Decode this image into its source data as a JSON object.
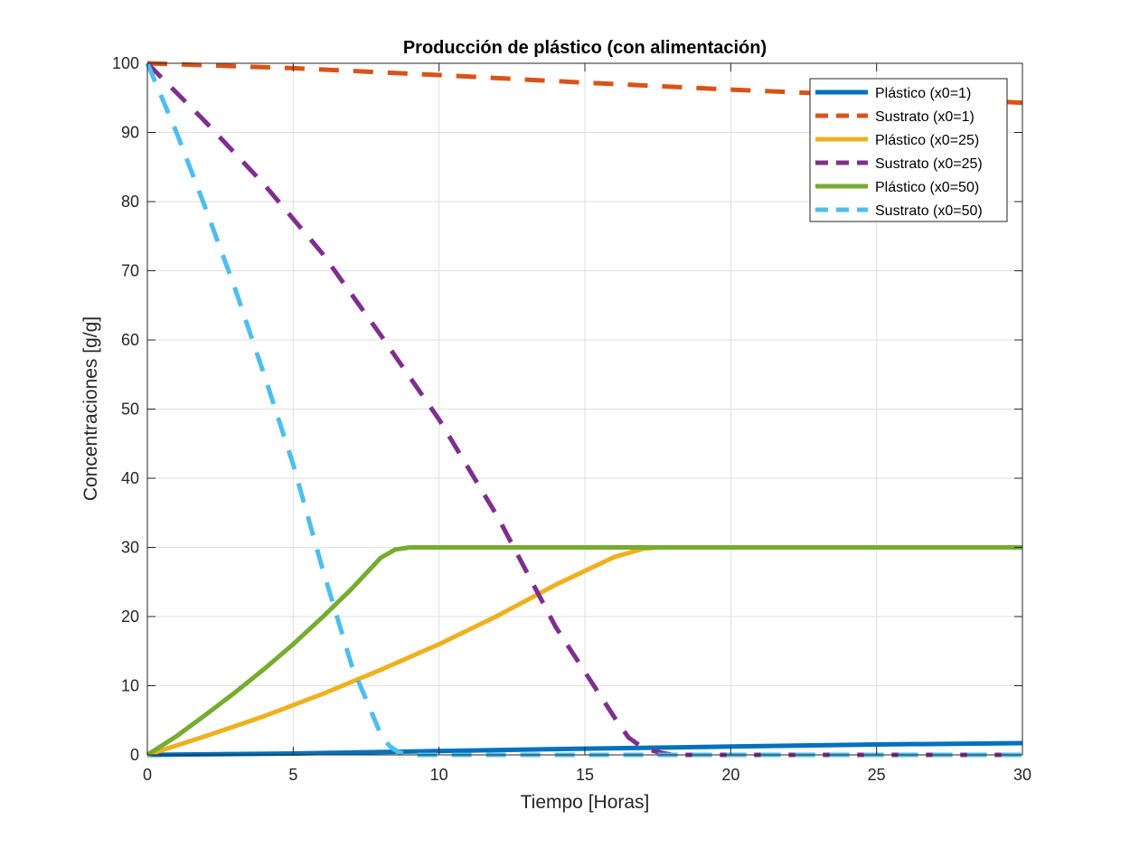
{
  "chart_data": {
    "type": "line",
    "title": "Producción de plástico (con alimentación)",
    "xlabel": "Tiempo [Horas]",
    "ylabel": "Concentraciones [g/g]",
    "xlim": [
      0,
      30
    ],
    "ylim": [
      0,
      100
    ],
    "xticks": [
      "0",
      "5",
      "10",
      "15",
      "20",
      "25",
      "30"
    ],
    "yticks": [
      "0",
      "10",
      "20",
      "30",
      "40",
      "50",
      "60",
      "70",
      "80",
      "90",
      "100"
    ],
    "grid": true,
    "legend_position": "top-right",
    "series": [
      {
        "name": "Plástico (x0=1)",
        "color": "#0072BD",
        "style": "solid",
        "x": [
          0,
          5,
          10,
          15,
          20,
          25,
          30
        ],
        "y": [
          0,
          0.2,
          0.55,
          0.9,
          1.2,
          1.5,
          1.7
        ]
      },
      {
        "name": "Sustrato (x0=1)",
        "color": "#D95319",
        "style": "dashed",
        "x": [
          0,
          5,
          10,
          15,
          20,
          25,
          30
        ],
        "y": [
          100,
          99.3,
          98.3,
          97.2,
          96.2,
          95.3,
          94.3
        ]
      },
      {
        "name": "Plástico (x0=25)",
        "color": "#EDB120",
        "style": "solid",
        "x": [
          0,
          2,
          4,
          6,
          8,
          10,
          12,
          14,
          16,
          17,
          17.5,
          18,
          20,
          25,
          30
        ],
        "y": [
          0,
          2.7,
          5.6,
          8.8,
          12.3,
          16,
          20.1,
          24.6,
          28.6,
          29.8,
          30,
          30,
          30,
          30,
          30
        ]
      },
      {
        "name": "Sustrato (x0=25)",
        "color": "#7E2F8E",
        "style": "dashed",
        "x": [
          0,
          2,
          4,
          6,
          8,
          10,
          12,
          14,
          16,
          16.5,
          17,
          17.5,
          18,
          19,
          20,
          25,
          30
        ],
        "y": [
          100,
          91.5,
          82.5,
          72.5,
          60.7,
          48.5,
          34.5,
          18.5,
          5.5,
          2.5,
          1,
          0.4,
          0,
          0,
          0,
          0,
          0
        ]
      },
      {
        "name": "Plástico (x0=50)",
        "color": "#77AC30",
        "style": "solid",
        "x": [
          0,
          1,
          2,
          3,
          4,
          5,
          6,
          7,
          8,
          8.5,
          9,
          9.5,
          10,
          15,
          20,
          25,
          30
        ],
        "y": [
          0,
          2.7,
          5.8,
          9,
          12.4,
          16,
          19.9,
          24,
          28.5,
          29.7,
          30,
          30,
          30,
          30,
          30,
          30,
          30
        ]
      },
      {
        "name": "Sustrato (x0=50)",
        "color": "#4DBEEE",
        "style": "dashed",
        "x": [
          0,
          1,
          2,
          3,
          4,
          5,
          6,
          7,
          8,
          8.3,
          8.6,
          9,
          10,
          15,
          20,
          25,
          30
        ],
        "y": [
          100,
          90,
          79,
          67.5,
          55,
          42,
          27,
          13,
          3,
          1.3,
          0.4,
          0,
          0,
          0,
          0,
          0,
          0
        ]
      }
    ]
  }
}
